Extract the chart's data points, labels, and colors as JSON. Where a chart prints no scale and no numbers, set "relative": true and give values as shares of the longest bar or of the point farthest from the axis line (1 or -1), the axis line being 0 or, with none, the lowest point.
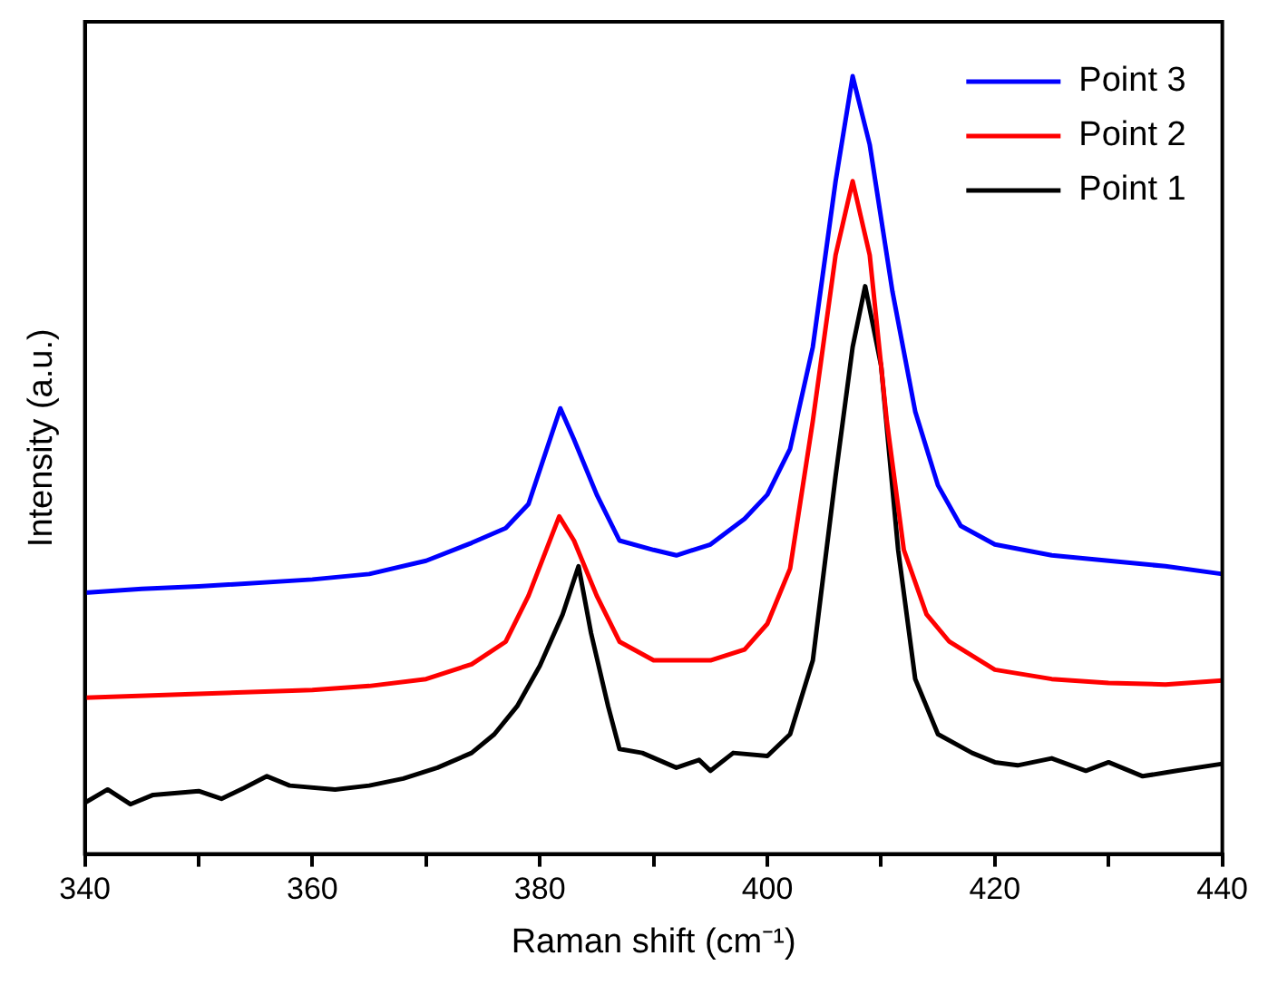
{
  "chart_data": {
    "type": "line",
    "xlabel": "Raman shift (cm⁻¹)",
    "ylabel": "Intensity (a.u.)",
    "relative": true,
    "xlim": [
      340,
      440
    ],
    "xticks": [
      340,
      {
        "value": 350,
        "label": null
      },
      360,
      {
        "value": 370,
        "label": null
      },
      380,
      {
        "value": 390,
        "label": null
      },
      400,
      {
        "value": 410,
        "label": null
      },
      420,
      {
        "value": 430,
        "label": null
      },
      440
    ],
    "grid": false,
    "legend": "top right",
    "marker": "none",
    "line_style": "solid",
    "series": [
      {
        "name": "Point 3",
        "color": "#0000ff",
        "x": [
          340,
          345,
          350,
          360,
          365,
          370,
          374,
          377,
          379,
          381.8,
          383,
          385,
          387,
          390,
          392,
          395,
          398,
          400,
          402,
          404,
          406,
          407.5,
          409,
          411,
          413,
          415,
          417,
          420,
          425,
          430,
          435,
          440
        ],
        "values": [
          0.336,
          0.341,
          0.344,
          0.353,
          0.36,
          0.377,
          0.4,
          0.419,
          0.45,
          0.573,
          0.533,
          0.462,
          0.403,
          0.391,
          0.384,
          0.398,
          0.431,
          0.462,
          0.521,
          0.652,
          0.865,
          1,
          0.912,
          0.723,
          0.569,
          0.474,
          0.422,
          0.398,
          0.384,
          0.377,
          0.37,
          0.36
        ]
      },
      {
        "name": "Point 2",
        "color": "#ff0000",
        "x": [
          340,
          350,
          360,
          365,
          370,
          374,
          377,
          379,
          381.7,
          383,
          385,
          387,
          390,
          395,
          398,
          400,
          402,
          404,
          406,
          407.5,
          409,
          410.5,
          412,
          414,
          416,
          420,
          425,
          430,
          435,
          440
        ],
        "values": [
          0.201,
          0.206,
          0.211,
          0.216,
          0.225,
          0.244,
          0.273,
          0.332,
          0.434,
          0.403,
          0.332,
          0.273,
          0.249,
          0.249,
          0.263,
          0.296,
          0.367,
          0.557,
          0.77,
          0.865,
          0.77,
          0.557,
          0.391,
          0.308,
          0.273,
          0.237,
          0.225,
          0.22,
          0.218,
          0.223
        ]
      },
      {
        "name": "Point 1",
        "color": "#000000",
        "x": [
          340,
          342,
          344,
          346,
          350,
          352,
          354,
          356,
          358,
          362,
          365,
          368,
          371,
          374,
          376,
          378,
          380,
          382,
          383.4,
          384.5,
          386,
          387,
          389,
          392,
          394,
          395,
          397,
          400,
          402,
          404,
          406,
          407.5,
          408.6,
          410,
          411.5,
          413,
          415,
          418,
          420,
          422,
          425,
          428,
          430,
          433,
          436,
          440
        ],
        "values": [
          0.066,
          0.083,
          0.064,
          0.076,
          0.081,
          0.071,
          0.085,
          0.1,
          0.088,
          0.083,
          0.088,
          0.097,
          0.111,
          0.13,
          0.154,
          0.19,
          0.242,
          0.308,
          0.37,
          0.284,
          0.19,
          0.135,
          0.13,
          0.111,
          0.121,
          0.107,
          0.13,
          0.126,
          0.154,
          0.249,
          0.486,
          0.652,
          0.73,
          0.628,
          0.391,
          0.225,
          0.154,
          0.13,
          0.118,
          0.114,
          0.123,
          0.107,
          0.118,
          0.1,
          0.107,
          0.116
        ]
      }
    ]
  }
}
